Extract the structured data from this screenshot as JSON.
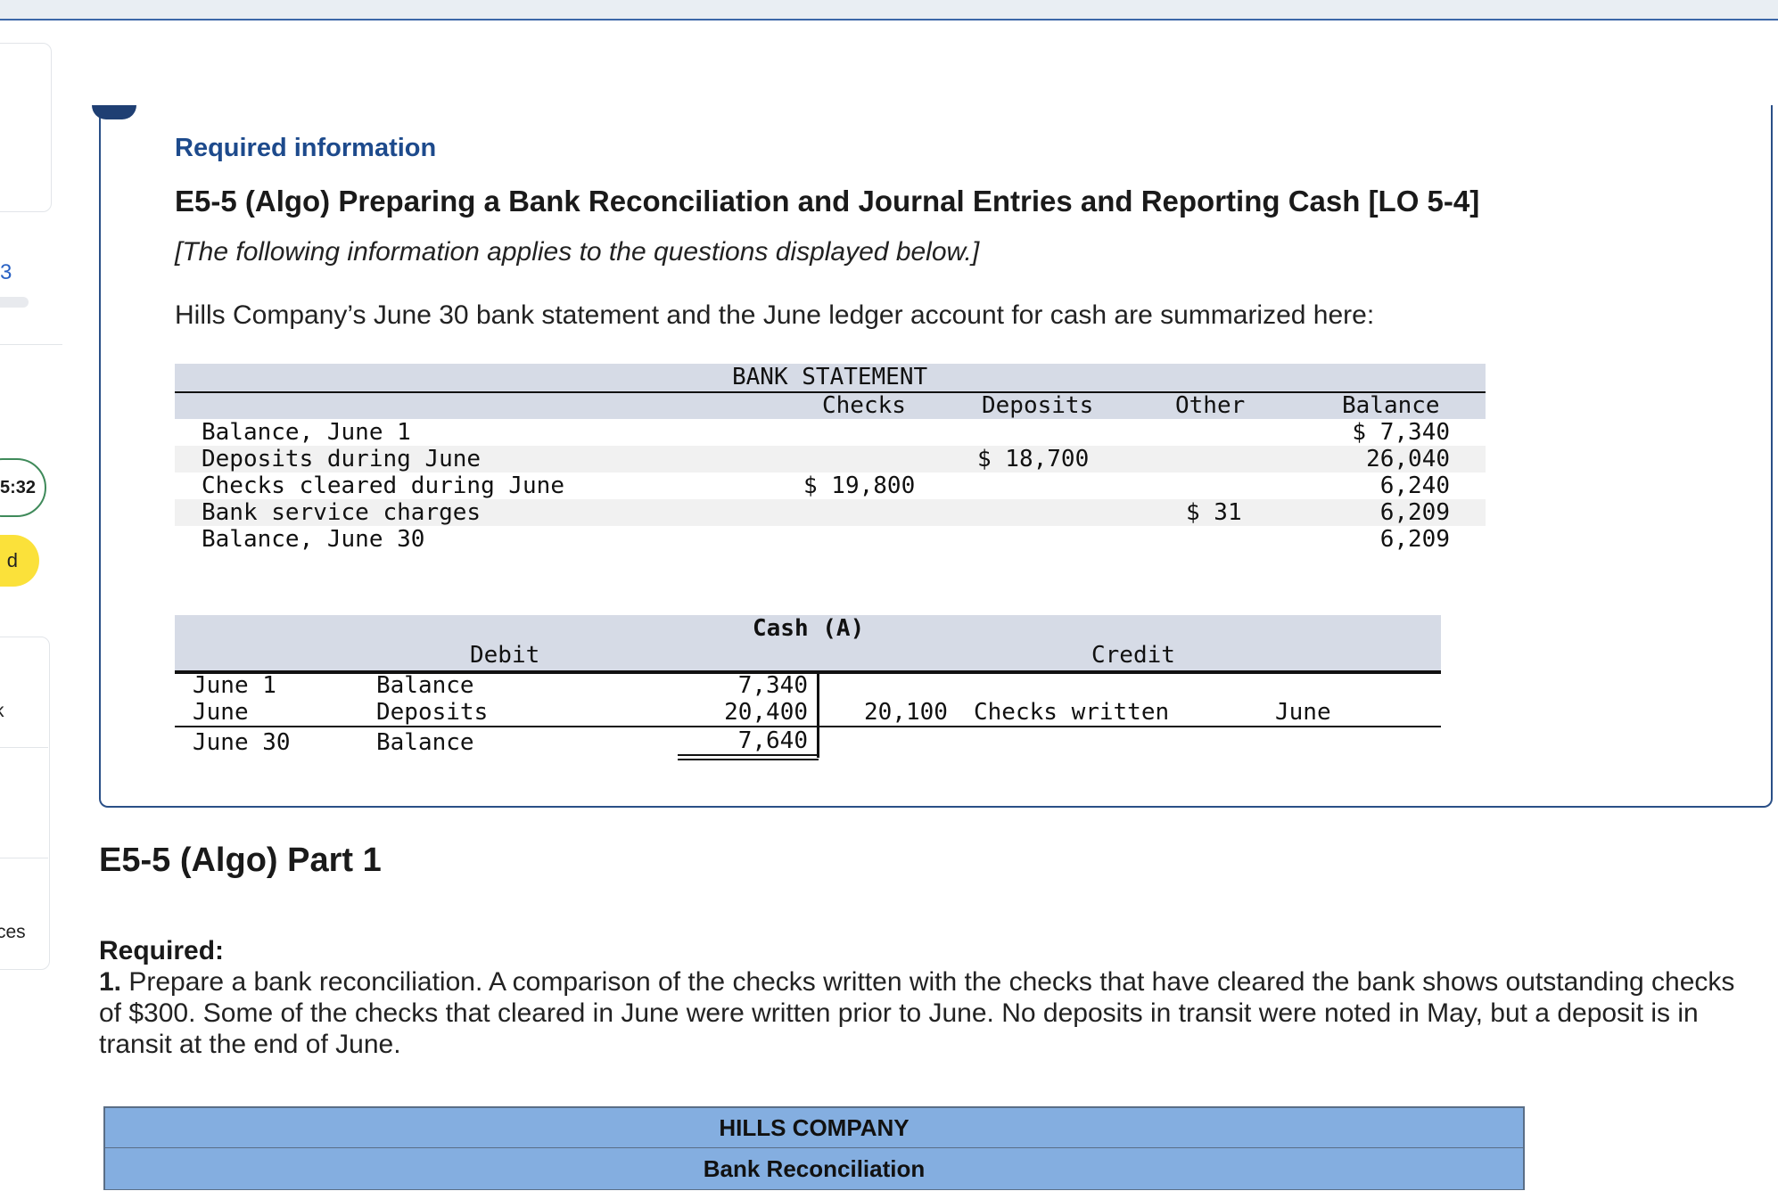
{
  "sidebar": {
    "question_number": "3",
    "timer": "5:32",
    "status_label": "d",
    "item_label": "k",
    "resources_label": "ces"
  },
  "info": {
    "required_heading": "Required information",
    "title": "E5-5 (Algo) Preparing a Bank Reconciliation and Journal Entries and Reporting Cash [LO 5-4]",
    "note": "[The following information applies to the questions displayed below.]",
    "intro": "Hills Company’s June 30 bank statement and the June ledger account for cash are summarized here:"
  },
  "bank_statement": {
    "title": "BANK STATEMENT",
    "columns": [
      "Checks",
      "Deposits",
      "Other",
      "Balance"
    ],
    "rows": [
      {
        "label": "Balance, June 1",
        "checks": "",
        "deposits": "",
        "other": "",
        "balance": "$ 7,340"
      },
      {
        "label": "Deposits during June",
        "checks": "",
        "deposits": "$ 18,700",
        "other": "",
        "balance": "26,040"
      },
      {
        "label": "Checks cleared during June",
        "checks": "$ 19,800",
        "deposits": "",
        "other": "",
        "balance": "6,240"
      },
      {
        "label": "Bank service charges",
        "checks": "",
        "deposits": "",
        "other": "$ 31",
        "balance": "6,209"
      },
      {
        "label": "Balance, June 30",
        "checks": "",
        "deposits": "",
        "other": "",
        "balance": "6,209"
      }
    ]
  },
  "cash_account": {
    "title": "Cash (A)",
    "debit_label": "Debit",
    "credit_label": "Credit",
    "rows": [
      {
        "date": "June 1",
        "desc": "Balance",
        "debit": "7,340",
        "credit": "",
        "credit_desc": "",
        "credit_date": ""
      },
      {
        "date": "June",
        "desc": "Deposits",
        "debit": "20,400",
        "credit": "20,100",
        "credit_desc": "Checks written",
        "credit_date": "June"
      }
    ],
    "ending": {
      "date": "June 30",
      "desc": "Balance",
      "debit": "7,640"
    }
  },
  "part": {
    "title": "E5-5 (Algo) Part 1",
    "required_label": "Required:",
    "item_number": "1.",
    "item_text": "Prepare a bank reconciliation. A comparison of the checks written with the checks that have cleared the bank shows outstanding checks of $300. Some of the checks that cleared in June were written prior to June. No deposits in transit were noted in May, but a deposit is in transit at the end of June."
  },
  "reconciliation": {
    "company": "HILLS COMPANY",
    "subtitle": "Bank Reconciliation"
  }
}
